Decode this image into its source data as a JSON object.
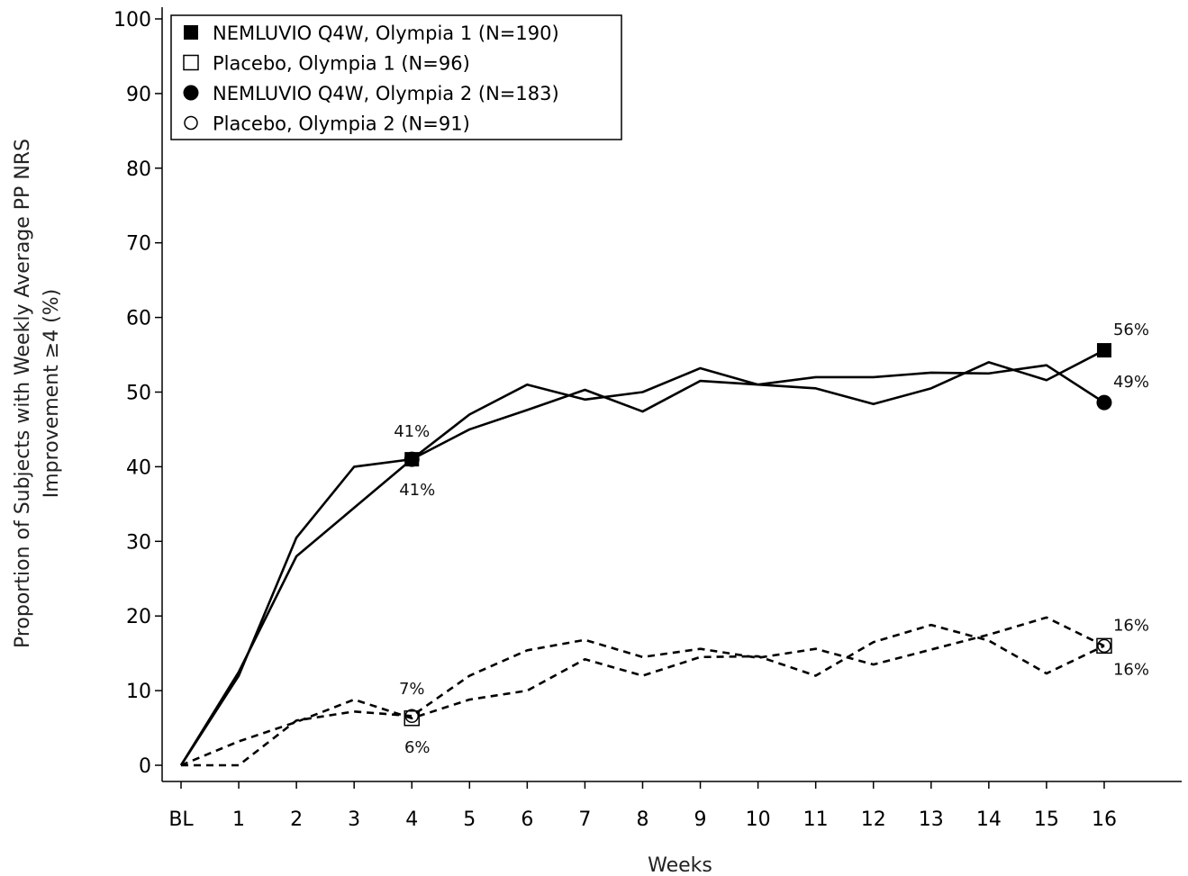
{
  "chart_data": {
    "type": "line",
    "categories": [
      "BL",
      "1",
      "2",
      "3",
      "4",
      "5",
      "6",
      "7",
      "8",
      "9",
      "10",
      "11",
      "12",
      "13",
      "14",
      "15",
      "16"
    ],
    "xlabel": "Weeks",
    "ylabel_lines": [
      "Proportion of Subjects with Weekly Average PP NRS",
      "Improvement ≥4 (%)"
    ],
    "ylim": [
      0,
      100
    ],
    "yticks": [
      0,
      10,
      20,
      30,
      40,
      50,
      60,
      70,
      80,
      90,
      100
    ],
    "grid": false,
    "legend_position": "top-left",
    "series": [
      {
        "name": "NEMLUVIO Q4W, Olympia 1 (N=190)",
        "values": [
          0,
          12.5,
          28,
          34.5,
          41,
          47,
          51,
          49,
          50,
          53.2,
          51,
          50.5,
          48.4,
          50.5,
          54,
          51.6,
          55.6
        ],
        "line": "solid",
        "marker": "filled-square"
      },
      {
        "name": "Placebo, Olympia 1 (N=96)",
        "values": [
          0,
          3.2,
          5.8,
          8.8,
          6.3,
          8.8,
          10,
          14.2,
          12,
          14.5,
          14.6,
          12,
          16.5,
          18.8,
          16.7,
          12.3,
          16
        ],
        "line": "dashed",
        "marker": "open-square"
      },
      {
        "name": "NEMLUVIO Q4W, Olympia 2 (N=183)",
        "values": [
          0,
          12,
          30.5,
          40,
          41,
          45,
          47.6,
          50.3,
          47.4,
          51.5,
          51,
          52,
          52,
          52.6,
          52.5,
          53.6,
          48.6
        ],
        "line": "solid",
        "marker": "filled-circle"
      },
      {
        "name": "Placebo, Olympia 2 (N=91)",
        "values": [
          0,
          0,
          6,
          7.2,
          6.6,
          12,
          15.4,
          16.8,
          14.5,
          15.6,
          14.4,
          15.6,
          13.5,
          15.5,
          17.5,
          19.8,
          16
        ],
        "line": "dashed",
        "marker": "open-circle"
      }
    ],
    "annotations": [
      {
        "text": "41%",
        "x": "4",
        "y": 41,
        "place": "above"
      },
      {
        "text": "41%",
        "x": "4",
        "y": 41,
        "place": "below"
      },
      {
        "text": "7%",
        "x": "4",
        "y": 6.5,
        "place": "above"
      },
      {
        "text": "6%",
        "x": "4",
        "y": 6.5,
        "place": "below"
      },
      {
        "text": "56%",
        "x": "16",
        "y": 55.6,
        "place": "upper-right"
      },
      {
        "text": "49%",
        "x": "16",
        "y": 48.6,
        "place": "upper-right"
      },
      {
        "text": "16%",
        "x": "16",
        "y": 16,
        "place": "upper-right"
      },
      {
        "text": "16%",
        "x": "16",
        "y": 16,
        "place": "lower-right"
      }
    ]
  }
}
